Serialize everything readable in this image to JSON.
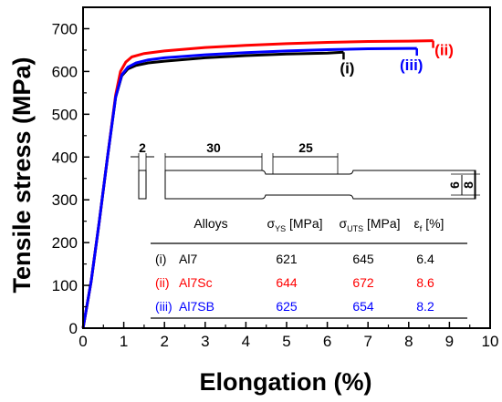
{
  "chart_data": {
    "type": "line",
    "xlabel": "Elongation (%)",
    "ylabel": "Tensile stress (MPa)",
    "xlim": [
      0,
      10
    ],
    "ylim": [
      0,
      750
    ],
    "x_ticks": [
      "0",
      "1",
      "2",
      "3",
      "4",
      "5",
      "6",
      "7",
      "8",
      "9",
      "10"
    ],
    "y_ticks": [
      "0",
      "100",
      "200",
      "300",
      "400",
      "500",
      "600",
      "700"
    ],
    "grid": false,
    "series": [
      {
        "label": "(i)",
        "color": "#000000",
        "points": [
          [
            0,
            0
          ],
          [
            0.2,
            110
          ],
          [
            0.4,
            250
          ],
          [
            0.6,
            400
          ],
          [
            0.8,
            540
          ],
          [
            0.95,
            590
          ],
          [
            1.1,
            606
          ],
          [
            1.3,
            614
          ],
          [
            1.6,
            620
          ],
          [
            2,
            624
          ],
          [
            3,
            632
          ],
          [
            4,
            637
          ],
          [
            5,
            641
          ],
          [
            6,
            643
          ],
          [
            6.4,
            645
          ]
        ]
      },
      {
        "label": "(ii)",
        "color": "#ff0000",
        "points": [
          [
            0,
            0
          ],
          [
            0.2,
            110
          ],
          [
            0.4,
            250
          ],
          [
            0.6,
            400
          ],
          [
            0.8,
            545
          ],
          [
            0.92,
            600
          ],
          [
            1.05,
            622
          ],
          [
            1.2,
            634
          ],
          [
            1.5,
            642
          ],
          [
            2,
            648
          ],
          [
            3,
            656
          ],
          [
            4,
            661
          ],
          [
            5,
            665
          ],
          [
            6,
            668
          ],
          [
            7,
            670
          ],
          [
            8,
            671
          ],
          [
            8.6,
            672
          ]
        ]
      },
      {
        "label": "(iii)",
        "color": "#0000ff",
        "points": [
          [
            0,
            0
          ],
          [
            0.2,
            110
          ],
          [
            0.4,
            250
          ],
          [
            0.6,
            400
          ],
          [
            0.8,
            540
          ],
          [
            0.95,
            592
          ],
          [
            1.1,
            610
          ],
          [
            1.3,
            620
          ],
          [
            1.6,
            627
          ],
          [
            2,
            632
          ],
          [
            3,
            639
          ],
          [
            4,
            644
          ],
          [
            5,
            648
          ],
          [
            6,
            651
          ],
          [
            7,
            653
          ],
          [
            8,
            654
          ],
          [
            8.2,
            654
          ]
        ]
      }
    ],
    "specimen_dimensions": [
      "2",
      "30",
      "25",
      "6",
      "8"
    ],
    "table": {
      "headers": [
        {
          "main": "Alloys",
          "sub": "",
          "tail": ""
        },
        {
          "main": "σ",
          "sub": "YS",
          "tail": " [MPa]"
        },
        {
          "main": "σ",
          "sub": "UTS",
          "tail": " [MPa]"
        },
        {
          "main": "ε",
          "sub": "f",
          "tail": " [%]"
        }
      ],
      "rows": [
        {
          "index": "(i)",
          "alloy": "Al7",
          "ys": "621",
          "uts": "645",
          "ef": "6.4",
          "color": "#000000"
        },
        {
          "index": "(ii)",
          "alloy": "Al7Sc",
          "ys": "644",
          "uts": "672",
          "ef": "8.6",
          "color": "#ff0000"
        },
        {
          "index": "(iii)",
          "alloy": "Al7SB",
          "ys": "625",
          "uts": "654",
          "ef": "8.2",
          "color": "#0000ff"
        }
      ]
    }
  }
}
